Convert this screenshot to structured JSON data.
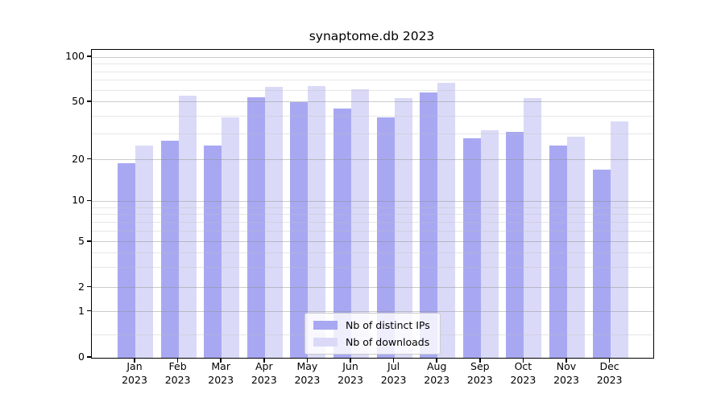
{
  "chart_data": {
    "type": "bar",
    "title": "synaptome.db 2023",
    "categories": [
      "Jan 2023",
      "Feb 2023",
      "Mar 2023",
      "Apr 2023",
      "May 2023",
      "Jun 2023",
      "Jul 2023",
      "Aug 2023",
      "Sep 2023",
      "Oct 2023",
      "Nov 2023",
      "Dec 2023"
    ],
    "month_labels": [
      "Jan",
      "Feb",
      "Mar",
      "Apr",
      "May",
      "Jun",
      "Jul",
      "Aug",
      "Sep",
      "Oct",
      "Nov",
      "Dec"
    ],
    "year_label": "2023",
    "series": [
      {
        "name": "Nb of distinct IPs",
        "color": "#a8a8f2",
        "values": [
          19,
          27,
          25,
          54,
          50,
          45,
          39,
          58,
          28,
          31,
          25,
          17
        ]
      },
      {
        "name": "Nb of downloads",
        "color": "#dadaf8",
        "values": [
          25,
          55,
          39,
          63,
          64,
          61,
          53,
          67,
          32,
          53,
          29,
          37
        ]
      }
    ],
    "yscale": "log-like with zero baseline",
    "yticks": [
      0,
      1,
      2,
      5,
      10,
      20,
      50,
      100
    ],
    "ytick_labels": [
      "0",
      "1",
      "2",
      "5",
      "10",
      "20",
      "50",
      "100"
    ],
    "ylim": [
      0,
      110
    ],
    "grid": "on (major + minor horizontal lines)",
    "legend_position": "lower center"
  },
  "legend": {
    "items": [
      {
        "label": "Nb of distinct IPs",
        "color": "#a8a8f2"
      },
      {
        "label": "Nb of downloads",
        "color": "#dadaf8"
      }
    ]
  },
  "colors": {
    "bar_distinct_ips": "#a8a8f2",
    "bar_downloads": "#dadaf8",
    "grid_major": "#c8c8c8",
    "grid_minor": "#e8e8e8",
    "spine": "#000000",
    "background": "#ffffff"
  }
}
